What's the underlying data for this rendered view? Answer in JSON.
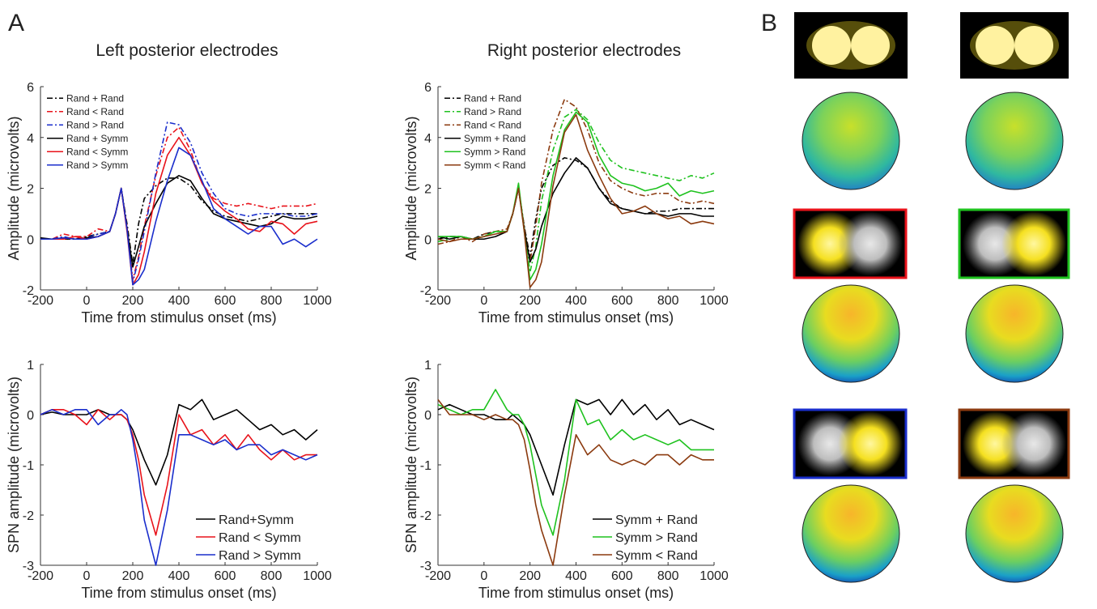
{
  "panel_labels": [
    "A",
    "B"
  ],
  "chart_data": [
    {
      "type": "line",
      "title": "Left posterior electrodes",
      "xlabel": "Time from stimulus onset (ms)",
      "ylabel": "Amplitude (microvolts)",
      "x": [
        -200,
        -150,
        -100,
        -50,
        0,
        50,
        100,
        125,
        150,
        175,
        200,
        225,
        250,
        300,
        350,
        400,
        450,
        500,
        550,
        600,
        650,
        700,
        750,
        800,
        850,
        900,
        950,
        1000
      ],
      "xlim": [
        -200,
        1000
      ],
      "xticks": [
        -200,
        0,
        200,
        400,
        600,
        800,
        1000
      ],
      "ylim": [
        -2,
        6
      ],
      "yticks": [
        -2,
        0,
        2,
        4,
        6
      ],
      "legend": "upper left",
      "series": [
        {
          "name": "Rand + Rand",
          "color": "#000000",
          "linestyle": "dashdot",
          "values": [
            0,
            0,
            0,
            0,
            0.1,
            0.2,
            0.3,
            1.0,
            2.0,
            0.6,
            -1.0,
            0.6,
            1.6,
            2.1,
            2.4,
            2.4,
            2.1,
            1.5,
            1.1,
            0.9,
            0.8,
            0.7,
            0.8,
            0.9,
            1.0,
            1.0,
            1.0,
            1.0
          ]
        },
        {
          "name": "Rand < Rand",
          "color": "#e8121a",
          "linestyle": "dashdot",
          "values": [
            0,
            0,
            0.2,
            0.1,
            0.1,
            0.4,
            0.3,
            1.0,
            2.0,
            0.5,
            -1.6,
            -0.7,
            0.5,
            2.5,
            4.0,
            4.4,
            3.5,
            2.2,
            1.6,
            1.4,
            1.3,
            1.4,
            1.3,
            1.2,
            1.3,
            1.3,
            1.3,
            1.4
          ]
        },
        {
          "name": "Rand > Rand",
          "color": "#1a2ecc",
          "linestyle": "dashdot",
          "values": [
            0,
            0,
            0.1,
            0,
            0.05,
            0.2,
            0.3,
            1.0,
            2.0,
            0.4,
            -1.7,
            -0.8,
            0.3,
            2.6,
            4.6,
            4.5,
            3.8,
            2.6,
            1.8,
            1.2,
            1.0,
            0.9,
            1.0,
            1.0,
            1.0,
            0.9,
            0.9,
            1.0
          ]
        },
        {
          "name": "Rand + Symm",
          "color": "#000000",
          "linestyle": "solid",
          "values": [
            0.05,
            0,
            0.05,
            0,
            0.05,
            0.1,
            0.3,
            1.0,
            2.0,
            0.4,
            -1.1,
            -0.3,
            0.5,
            1.4,
            2.2,
            2.5,
            2.3,
            1.6,
            1.0,
            0.8,
            0.7,
            0.6,
            0.5,
            0.6,
            0.9,
            0.8,
            0.8,
            0.9
          ]
        },
        {
          "name": "Rand < Symm",
          "color": "#e8121a",
          "linestyle": "solid",
          "values": [
            0,
            0,
            0,
            0.1,
            0,
            0.1,
            0.3,
            1.0,
            2.0,
            0.3,
            -1.8,
            -1.4,
            -0.5,
            1.8,
            3.3,
            4.0,
            3.3,
            2.2,
            1.5,
            1.1,
            0.8,
            0.4,
            0.3,
            0.7,
            0.6,
            0.2,
            0.6,
            0.7
          ]
        },
        {
          "name": "Rand > Symm",
          "color": "#1a2ecc",
          "linestyle": "solid",
          "values": [
            0,
            0,
            0.05,
            0,
            0,
            0.1,
            0.3,
            1.0,
            2.0,
            0.4,
            -1.8,
            -1.6,
            -1.2,
            0.7,
            2.3,
            3.6,
            3.3,
            2.3,
            1.2,
            0.8,
            0.5,
            0.2,
            0.5,
            0.5,
            -0.2,
            0,
            -0.3,
            0.0
          ]
        }
      ]
    },
    {
      "type": "line",
      "title": "Right posterior electrodes",
      "xlabel": "Time from stimulus onset (ms)",
      "ylabel": "Amplitude (microvolts)",
      "x": [
        -200,
        -150,
        -100,
        -50,
        0,
        50,
        100,
        125,
        150,
        175,
        200,
        225,
        250,
        300,
        350,
        400,
        450,
        500,
        550,
        600,
        650,
        700,
        750,
        800,
        850,
        900,
        950,
        1000
      ],
      "xlim": [
        -200,
        1000
      ],
      "xticks": [
        -200,
        0,
        200,
        400,
        600,
        800,
        1000
      ],
      "ylim": [
        -2,
        6
      ],
      "yticks": [
        -2,
        0,
        2,
        4,
        6
      ],
      "legend": "upper left",
      "series": [
        {
          "name": "Rand + Rand",
          "color": "#000000",
          "linestyle": "dashdot",
          "values": [
            0,
            0.1,
            0.1,
            0,
            0.2,
            0.3,
            0.3,
            1.0,
            2.0,
            0.5,
            -0.7,
            0.8,
            2.0,
            2.9,
            3.2,
            3.1,
            2.8,
            2.0,
            1.5,
            1.2,
            1.1,
            1.0,
            1.1,
            1.1,
            1.2,
            1.2,
            1.2,
            1.2
          ]
        },
        {
          "name": "Rand > Rand",
          "color": "#1fc21f",
          "linestyle": "dashdot",
          "values": [
            -0.1,
            0,
            0.1,
            0,
            0.1,
            0.3,
            0.3,
            1.0,
            2.1,
            0.4,
            -1.3,
            -0.3,
            1.5,
            3.5,
            4.8,
            5.1,
            4.7,
            3.8,
            3.1,
            2.8,
            2.7,
            2.6,
            2.5,
            2.4,
            2.3,
            2.5,
            2.4,
            2.6
          ]
        },
        {
          "name": "Rand < Rand",
          "color": "#8b3a0f",
          "linestyle": "dashdot",
          "values": [
            -0.2,
            -0.1,
            0.1,
            -0.1,
            0.2,
            0.3,
            0.4,
            1.0,
            2.0,
            0.5,
            -0.9,
            0.5,
            2.2,
            4.3,
            5.5,
            5.2,
            4.3,
            3.0,
            2.3,
            2.0,
            1.8,
            1.7,
            1.8,
            1.8,
            1.5,
            1.4,
            1.5,
            1.4
          ]
        },
        {
          "name": "Symm + Rand",
          "color": "#000000",
          "linestyle": "solid",
          "values": [
            0.1,
            0,
            0.1,
            0,
            0,
            0.1,
            0.3,
            1.0,
            2.0,
            0.4,
            -0.9,
            -0.4,
            0.5,
            1.8,
            2.6,
            3.2,
            2.8,
            2.0,
            1.4,
            1.2,
            1.1,
            1.0,
            1.0,
            0.9,
            1.0,
            1.0,
            0.9,
            0.9
          ]
        },
        {
          "name": "Symm > Rand",
          "color": "#1fc21f",
          "linestyle": "solid",
          "values": [
            0.1,
            0.1,
            0.1,
            0,
            0.1,
            0.3,
            0.3,
            1.0,
            2.2,
            0.3,
            -1.6,
            -1.2,
            -0.2,
            2.5,
            4.3,
            5.0,
            4.6,
            3.3,
            2.5,
            2.2,
            2.1,
            1.9,
            2.0,
            2.2,
            1.7,
            1.9,
            1.8,
            1.9
          ]
        },
        {
          "name": "Symm < Rand",
          "color": "#8b3a0f",
          "linestyle": "solid",
          "values": [
            0,
            -0.1,
            0,
            0,
            0.1,
            0.2,
            0.3,
            1.0,
            2.0,
            0.3,
            -1.9,
            -1.6,
            -0.9,
            2.1,
            4.2,
            4.9,
            3.5,
            2.5,
            1.6,
            1.0,
            1.1,
            1.3,
            1.0,
            0.8,
            0.9,
            0.6,
            0.7,
            0.6
          ]
        }
      ]
    },
    {
      "type": "line",
      "xlabel": "Time from stimulus onset (ms)",
      "ylabel": "SPN amplitude (microvolts)",
      "x": [
        -200,
        -150,
        -100,
        -50,
        0,
        50,
        100,
        125,
        150,
        175,
        200,
        225,
        250,
        300,
        350,
        400,
        450,
        500,
        550,
        600,
        650,
        700,
        750,
        800,
        850,
        900,
        950,
        1000
      ],
      "xlim": [
        -200,
        1000
      ],
      "xticks": [
        -200,
        0,
        200,
        400,
        600,
        800,
        1000
      ],
      "ylim": [
        -3,
        1
      ],
      "yticks": [
        -3,
        -2,
        -1,
        0,
        1
      ],
      "legend": "lower right",
      "series": [
        {
          "name": "Rand+Symm",
          "color": "#000000",
          "linestyle": "solid",
          "values": [
            0,
            0.05,
            0,
            0,
            0,
            0.1,
            0,
            0,
            0,
            -0.1,
            -0.3,
            -0.6,
            -0.9,
            -1.4,
            -0.8,
            0.2,
            0.1,
            0.3,
            -0.1,
            0,
            0.1,
            -0.1,
            -0.3,
            -0.2,
            -0.4,
            -0.3,
            -0.5,
            -0.3
          ]
        },
        {
          "name": "Rand < Symm",
          "color": "#e8121a",
          "linestyle": "solid",
          "values": [
            0,
            0.1,
            0.1,
            0,
            -0.2,
            0.1,
            -0.1,
            0,
            0,
            -0.1,
            -0.4,
            -0.9,
            -1.6,
            -2.4,
            -1.4,
            0,
            -0.4,
            -0.3,
            -0.6,
            -0.4,
            -0.7,
            -0.4,
            -0.7,
            -0.9,
            -0.7,
            -0.9,
            -0.8,
            -0.8
          ]
        },
        {
          "name": "Rand > Symm",
          "color": "#1a2ecc",
          "linestyle": "solid",
          "values": [
            0,
            0.1,
            0,
            0.1,
            0.1,
            -0.2,
            0,
            0,
            0.1,
            0,
            -0.5,
            -1.2,
            -2.1,
            -3.0,
            -1.9,
            -0.4,
            -0.4,
            -0.5,
            -0.6,
            -0.5,
            -0.7,
            -0.6,
            -0.6,
            -0.8,
            -0.7,
            -0.8,
            -0.9,
            -0.8
          ]
        }
      ]
    },
    {
      "type": "line",
      "xlabel": "Time from stimulus onset (ms)",
      "ylabel": "SPN amplitude (microvolts)",
      "x": [
        -200,
        -150,
        -100,
        -50,
        0,
        50,
        100,
        125,
        150,
        175,
        200,
        225,
        250,
        300,
        350,
        400,
        450,
        500,
        550,
        600,
        650,
        700,
        750,
        800,
        850,
        900,
        950,
        1000
      ],
      "xlim": [
        -200,
        1000
      ],
      "xticks": [
        -200,
        0,
        200,
        400,
        600,
        800,
        1000
      ],
      "ylim": [
        -3,
        1
      ],
      "yticks": [
        -3,
        -2,
        -1,
        0,
        1
      ],
      "legend": "lower right",
      "series": [
        {
          "name": "Symm + Rand",
          "color": "#000000",
          "linestyle": "solid",
          "values": [
            0.1,
            0.2,
            0.1,
            0,
            0,
            -0.1,
            -0.1,
            0,
            -0.1,
            -0.2,
            -0.4,
            -0.7,
            -1.0,
            -1.6,
            -0.6,
            0.3,
            0.2,
            0.3,
            0,
            0.3,
            0,
            0.2,
            -0.1,
            0.1,
            -0.2,
            -0.1,
            -0.2,
            -0.3
          ]
        },
        {
          "name": "Symm > Rand",
          "color": "#1fc21f",
          "linestyle": "solid",
          "values": [
            0.2,
            0.1,
            0,
            0.1,
            0.1,
            0.5,
            0.1,
            0,
            0,
            -0.2,
            -0.6,
            -1.2,
            -1.8,
            -2.4,
            -1.3,
            0.3,
            -0.2,
            -0.1,
            -0.5,
            -0.3,
            -0.5,
            -0.4,
            -0.5,
            -0.6,
            -0.5,
            -0.7,
            -0.7,
            -0.7
          ]
        },
        {
          "name": "Symm < Rand",
          "color": "#8b3a0f",
          "linestyle": "solid",
          "values": [
            0.3,
            0,
            0,
            0,
            -0.1,
            0,
            -0.1,
            -0.1,
            -0.2,
            -0.5,
            -1.1,
            -1.8,
            -2.3,
            -3.0,
            -1.6,
            -0.4,
            -0.8,
            -0.6,
            -0.9,
            -1.0,
            -0.9,
            -1.0,
            -0.8,
            -0.8,
            -1.0,
            -0.8,
            -0.9,
            -0.9
          ]
        }
      ]
    }
  ]
}
